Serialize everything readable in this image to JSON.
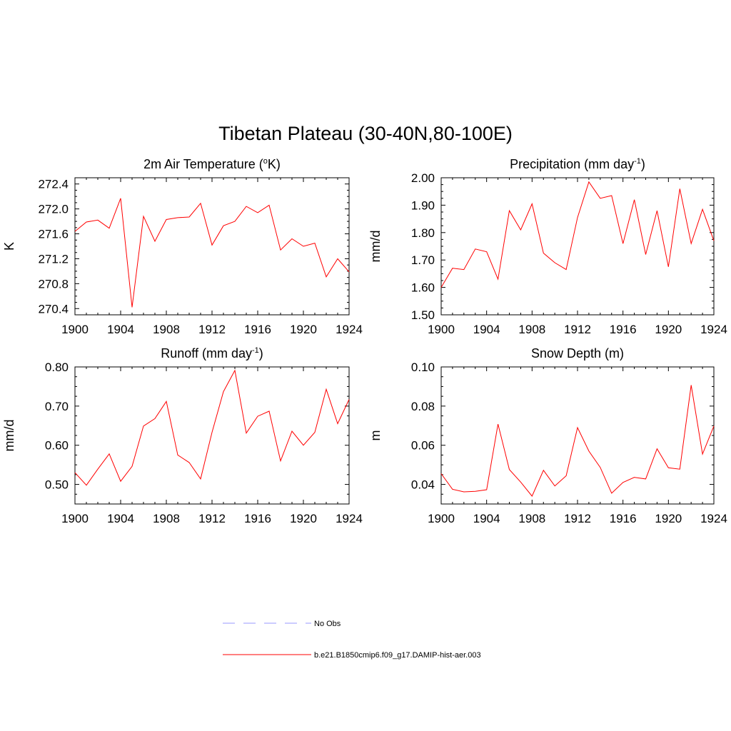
{
  "figure": {
    "title": "Tibetan Plateau (30-40N,80-100E)"
  },
  "legend": {
    "items": [
      {
        "label": "No Obs",
        "color": "#9999ff",
        "dashed": true
      },
      {
        "label": "b.e21.B1850cmip6.f09_g17.DAMIP-hist-aer.003",
        "color": "#ff0000",
        "dashed": false
      }
    ]
  },
  "chart_data": [
    {
      "type": "line",
      "title": "2m Air Temperature (°K)",
      "title_parts": [
        "2m Air Temperature (",
        "o",
        "K)"
      ],
      "ylabel": "K",
      "xlim": [
        1900,
        1924
      ],
      "ylim": [
        270.3,
        272.5
      ],
      "yticks": [
        270.4,
        270.8,
        271.2,
        271.6,
        272.0,
        272.4
      ],
      "ytick_labels": [
        "270.4",
        "270.8",
        "271.2",
        "271.6",
        "272.0",
        "272.4"
      ],
      "xticks": [
        1900,
        1904,
        1908,
        1912,
        1916,
        1920,
        1924
      ],
      "xtick_labels": [
        "1900",
        "1904",
        "1908",
        "1912",
        "1916",
        "1920",
        "1924"
      ],
      "grid": false,
      "color": "#ff0000",
      "x": [
        1900,
        1901,
        1902,
        1903,
        1904,
        1905,
        1906,
        1907,
        1908,
        1909,
        1910,
        1911,
        1912,
        1913,
        1914,
        1915,
        1916,
        1917,
        1918,
        1919,
        1920,
        1921,
        1922,
        1923,
        1924
      ],
      "y": [
        271.64,
        271.79,
        271.82,
        271.69,
        272.17,
        270.42,
        271.88,
        271.48,
        271.83,
        271.86,
        271.87,
        272.09,
        271.42,
        271.73,
        271.8,
        272.04,
        271.94,
        272.06,
        271.34,
        271.52,
        271.4,
        271.45,
        270.91,
        271.2,
        270.99
      ]
    },
    {
      "type": "line",
      "title": "Precipitation (mm day-1)",
      "title_parts": [
        "Precipitation (mm day",
        "-1",
        ")"
      ],
      "ylabel": "mm/d",
      "xlim": [
        1900,
        1924
      ],
      "ylim": [
        1.5,
        2.0
      ],
      "yticks": [
        1.5,
        1.6,
        1.7,
        1.8,
        1.9,
        2.0
      ],
      "ytick_labels": [
        "1.50",
        "1.60",
        "1.70",
        "1.80",
        "1.90",
        "2.00"
      ],
      "xticks": [
        1900,
        1904,
        1908,
        1912,
        1916,
        1920,
        1924
      ],
      "xtick_labels": [
        "1900",
        "1904",
        "1908",
        "1912",
        "1916",
        "1920",
        "1924"
      ],
      "grid": false,
      "color": "#ff0000",
      "x": [
        1900,
        1901,
        1902,
        1903,
        1904,
        1905,
        1906,
        1907,
        1908,
        1909,
        1910,
        1911,
        1912,
        1913,
        1914,
        1915,
        1916,
        1917,
        1918,
        1919,
        1920,
        1921,
        1922,
        1923,
        1924
      ],
      "y": [
        1.6,
        1.67,
        1.665,
        1.74,
        1.73,
        1.63,
        1.88,
        1.81,
        1.905,
        1.725,
        1.69,
        1.665,
        1.855,
        1.985,
        1.925,
        1.935,
        1.76,
        1.92,
        1.72,
        1.88,
        1.675,
        1.96,
        1.76,
        1.885,
        1.77
      ]
    },
    {
      "type": "line",
      "title": "Runoff (mm day-1)",
      "title_parts": [
        "Runoff (mm day",
        "-1",
        ")"
      ],
      "ylabel": "mm/d",
      "xlim": [
        1900,
        1924
      ],
      "ylim": [
        0.45,
        0.8
      ],
      "yticks": [
        0.5,
        0.6,
        0.7,
        0.8
      ],
      "ytick_labels": [
        "0.50",
        "0.60",
        "0.70",
        "0.80"
      ],
      "xticks": [
        1900,
        1904,
        1908,
        1912,
        1916,
        1920,
        1924
      ],
      "xtick_labels": [
        "1900",
        "1904",
        "1908",
        "1912",
        "1916",
        "1920",
        "1924"
      ],
      "grid": false,
      "color": "#ff0000",
      "x": [
        1900,
        1901,
        1902,
        1903,
        1904,
        1905,
        1906,
        1907,
        1908,
        1909,
        1910,
        1911,
        1912,
        1913,
        1914,
        1915,
        1916,
        1917,
        1918,
        1919,
        1920,
        1921,
        1922,
        1923,
        1924
      ],
      "y": [
        0.53,
        0.498,
        0.539,
        0.578,
        0.508,
        0.546,
        0.649,
        0.668,
        0.712,
        0.575,
        0.556,
        0.514,
        0.633,
        0.737,
        0.791,
        0.631,
        0.674,
        0.687,
        0.56,
        0.636,
        0.6,
        0.633,
        0.743,
        0.655,
        0.717
      ]
    },
    {
      "type": "line",
      "title": "Snow Depth (m)",
      "title_parts": [
        "Snow Depth (m)",
        "",
        ""
      ],
      "ylabel": "m",
      "xlim": [
        1900,
        1924
      ],
      "ylim": [
        0.03,
        0.1
      ],
      "yticks": [
        0.04,
        0.06,
        0.08,
        0.1
      ],
      "ytick_labels": [
        "0.04",
        "0.06",
        "0.08",
        "0.10"
      ],
      "xticks": [
        1900,
        1904,
        1908,
        1912,
        1916,
        1920,
        1924
      ],
      "xtick_labels": [
        "1900",
        "1904",
        "1908",
        "1912",
        "1916",
        "1920",
        "1924"
      ],
      "grid": false,
      "color": "#ff0000",
      "x": [
        1900,
        1901,
        1902,
        1903,
        1904,
        1905,
        1906,
        1907,
        1908,
        1909,
        1910,
        1911,
        1912,
        1913,
        1914,
        1915,
        1916,
        1917,
        1918,
        1919,
        1920,
        1921,
        1922,
        1923,
        1924
      ],
      "y": [
        0.0455,
        0.0375,
        0.0362,
        0.0365,
        0.0373,
        0.0708,
        0.0476,
        0.0412,
        0.034,
        0.0472,
        0.0392,
        0.0444,
        0.069,
        0.057,
        0.0487,
        0.0355,
        0.041,
        0.0436,
        0.0428,
        0.0582,
        0.0485,
        0.0478,
        0.0907,
        0.0555,
        0.0698
      ]
    }
  ]
}
